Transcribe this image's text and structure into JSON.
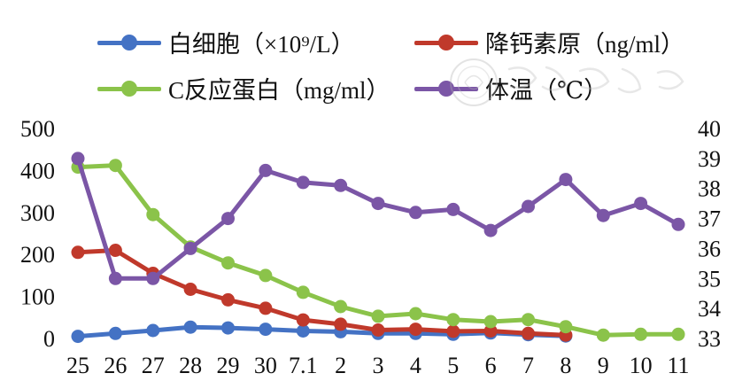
{
  "chart_data": {
    "type": "line",
    "categories": [
      "25",
      "26",
      "27",
      "28",
      "29",
      "30",
      "7.1",
      "2",
      "3",
      "4",
      "5",
      "6",
      "7",
      "8",
      "9",
      "10",
      "11"
    ],
    "left_axis": {
      "ylim": [
        0,
        500
      ],
      "ticks": [
        0,
        100,
        200,
        300,
        400,
        500
      ]
    },
    "right_axis": {
      "ylim": [
        33,
        40
      ],
      "ticks": [
        33,
        34,
        35,
        36,
        37,
        38,
        39,
        40
      ]
    },
    "grid": false,
    "legend_position": "top",
    "series": [
      {
        "name": "白细胞（×10⁹/L）",
        "axis": "left",
        "color": "#4472C4",
        "values": [
          5,
          12,
          19,
          27,
          25,
          22,
          18,
          16,
          12,
          12,
          10,
          13,
          9,
          6,
          null,
          null,
          null
        ]
      },
      {
        "name": "降钙素原（ng/ml）",
        "axis": "left",
        "color": "#C0392B",
        "values": [
          205,
          210,
          155,
          117,
          92,
          72,
          44,
          34,
          20,
          22,
          17,
          18,
          12,
          8,
          null,
          null,
          null
        ]
      },
      {
        "name": "C反应蛋白（mg/ml）",
        "axis": "left",
        "color": "#8BC34A",
        "values": [
          408,
          412,
          295,
          218,
          180,
          150,
          110,
          76,
          53,
          59,
          45,
          40,
          45,
          28,
          8,
          10,
          10
        ]
      },
      {
        "name": "体温（℃）",
        "axis": "right",
        "color": "#7B56A6",
        "values": [
          39.0,
          35.0,
          35.0,
          36.0,
          37.0,
          38.6,
          38.2,
          38.1,
          37.5,
          37.2,
          37.3,
          36.6,
          37.4,
          38.3,
          37.1,
          37.5,
          36.8
        ]
      }
    ]
  }
}
